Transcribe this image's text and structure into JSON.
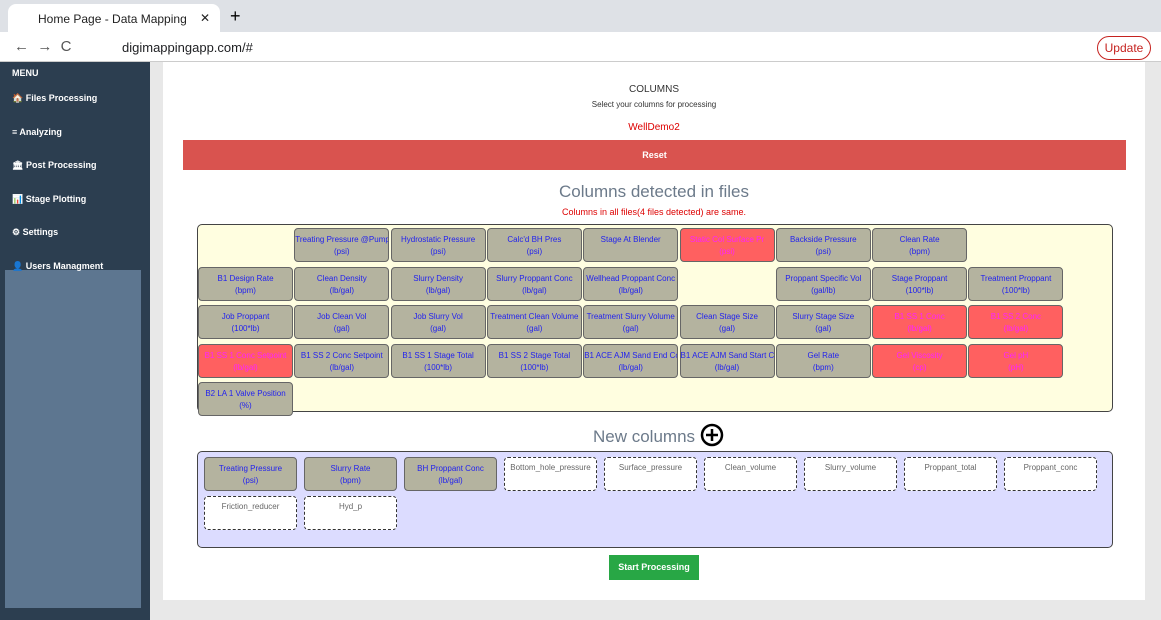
{
  "browser": {
    "tab_title": "Home Page - Data Mapping",
    "url": "digimappingapp.com/#",
    "update_button": "Update"
  },
  "sidebar": {
    "menu_label": "MENU",
    "items": [
      "Files Processing",
      "Analyzing",
      "Post Processing",
      "Stage Plotting",
      "Settings",
      "Users Managment"
    ]
  },
  "header": {
    "title": "COLUMNS",
    "subtitle": "Select your columns for processing",
    "well_name": "WellDemo2",
    "reset_button": "Reset"
  },
  "detected": {
    "title": "Columns detected in files",
    "status": "Columns in all files(4 files detected) are same.",
    "rows": [
      [
        null,
        {
          "name": "Treating Pressure @Pump",
          "unit": "(psi)",
          "color": "#b4b39f"
        },
        {
          "name": "Hydrostatic Pressure",
          "unit": "(psi)",
          "color": "#b4b39f"
        },
        {
          "name": "Calc'd BH Pres",
          "unit": "(psi)",
          "color": "#b4b39f"
        },
        {
          "name": "Stage At Blender",
          "unit": "",
          "color": "#b4b39f"
        },
        {
          "name": "Static Col Surface Pr",
          "unit": "(psi)",
          "color": "#ff6060"
        },
        {
          "name": "Backside Pressure",
          "unit": "(psi)",
          "color": "#b4b39f"
        },
        {
          "name": "Clean Rate",
          "unit": "(bpm)",
          "color": "#b4b39f"
        },
        null
      ],
      [
        {
          "name": "B1 Design Rate",
          "unit": "(bpm)",
          "color": "#b4b39f"
        },
        {
          "name": "Clean Density",
          "unit": "(lb/gal)",
          "color": "#b4b39f"
        },
        {
          "name": "Slurry Density",
          "unit": "(lb/gal)",
          "color": "#b4b39f"
        },
        {
          "name": "Slurry Proppant Conc",
          "unit": "(lb/gal)",
          "color": "#b4b39f"
        },
        {
          "name": "Wellhead Proppant Conc",
          "unit": "(lb/gal)",
          "color": "#b4b39f"
        },
        null,
        {
          "name": "Proppant Specific Vol",
          "unit": "(gal/lb)",
          "color": "#b4b39f"
        },
        {
          "name": "Stage Proppant",
          "unit": "(100*lb)",
          "color": "#b4b39f"
        },
        {
          "name": "Treatment Proppant",
          "unit": "(100*lb)",
          "color": "#b4b39f"
        }
      ],
      [
        {
          "name": "Job Proppant",
          "unit": "(100*lb)",
          "color": "#b4b39f"
        },
        {
          "name": "Job Clean Vol",
          "unit": "(gal)",
          "color": "#b4b39f"
        },
        {
          "name": "Job Slurry Vol",
          "unit": "(gal)",
          "color": "#b4b39f"
        },
        {
          "name": "Treatment Clean Volume",
          "unit": "(gal)",
          "color": "#b4b39f"
        },
        {
          "name": "Treatment Slurry Volume",
          "unit": "(gal)",
          "color": "#b4b39f"
        },
        {
          "name": "Clean Stage Size",
          "unit": "(gal)",
          "color": "#b4b39f"
        },
        {
          "name": "Slurry Stage Size",
          "unit": "(gal)",
          "color": "#b4b39f"
        },
        {
          "name": "B1 SS 1 Conc",
          "unit": "(lb/gal)",
          "color": "#ff6060"
        },
        {
          "name": "B1 SS 2 Conc",
          "unit": "(lb/gal)",
          "color": "#ff6060"
        }
      ],
      [
        {
          "name": "B1 SS 1 Conc Setpoint",
          "unit": "(lb/gal)",
          "color": "#ff6060"
        },
        {
          "name": "B1 SS 2 Conc Setpoint",
          "unit": "(lb/gal)",
          "color": "#b4b39f"
        },
        {
          "name": "B1 SS 1 Stage Total",
          "unit": "(100*lb)",
          "color": "#b4b39f"
        },
        {
          "name": "B1 SS 2 Stage Total",
          "unit": "(100*lb)",
          "color": "#b4b39f"
        },
        {
          "name": "B1 ACE AJM Sand End Co",
          "unit": "(lb/gal)",
          "color": "#b4b39f"
        },
        {
          "name": "B1 ACE AJM Sand Start C",
          "unit": "(lb/gal)",
          "color": "#b4b39f"
        },
        {
          "name": "Gel Rate",
          "unit": "(bpm)",
          "color": "#b4b39f"
        },
        {
          "name": "Gel Viscosity",
          "unit": "(cp)",
          "color": "#ff6060"
        },
        {
          "name": "Gel pH",
          "unit": "(pH)",
          "color": "#ff6060"
        }
      ],
      [
        {
          "name": "B2 LA 1 Valve Position",
          "unit": "(%)",
          "color": "#b4b39f"
        }
      ]
    ]
  },
  "new_columns": {
    "title": "New columns",
    "mapped": [
      {
        "name": "Treating Pressure",
        "unit": "(psi)"
      },
      {
        "name": "Slurry Rate",
        "unit": "(bpm)"
      },
      {
        "name": "BH Proppant Conc",
        "unit": "(lb/gal)"
      }
    ],
    "targets": [
      "Bottom_hole_pressure",
      "Surface_pressure",
      "Clean_volume",
      "Slurry_volume",
      "Proppant_total",
      "Proppant_conc",
      "Friction_reducer",
      "Hyd_p"
    ]
  },
  "start_button": "Start Processing"
}
